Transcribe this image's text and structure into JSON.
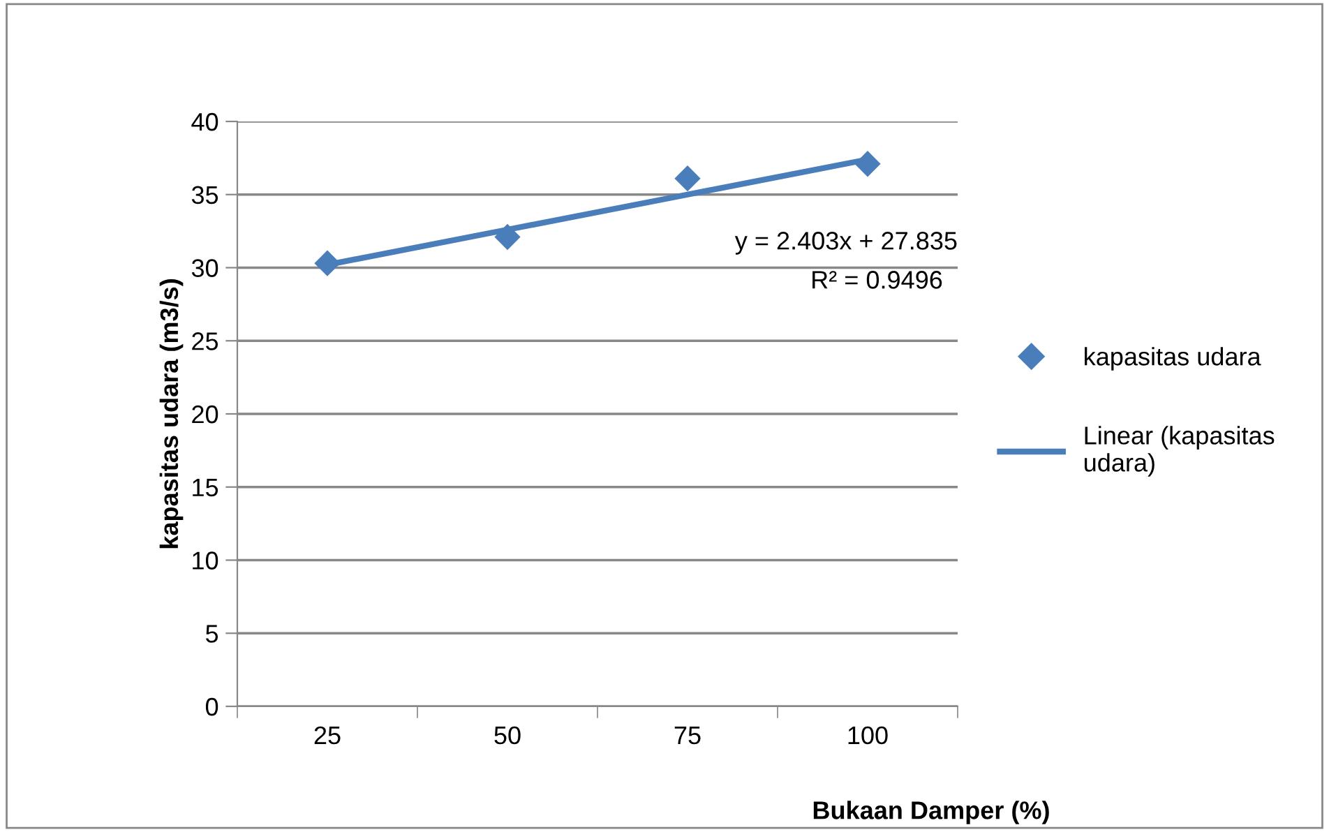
{
  "chart_data": {
    "type": "scatter",
    "xlabel": "Bukaan Damper (%)",
    "ylabel": "kapasitas udara (m3/s)",
    "categories": [
      "25",
      "50",
      "75",
      "100"
    ],
    "series": [
      {
        "name": "kapasitas udara",
        "color": "#4a7ebb",
        "marker": "diamond",
        "values": [
          30.3,
          32.1,
          36.1,
          37.1
        ]
      },
      {
        "name": "Linear (kapasitas udara)",
        "type": "line",
        "color": "#4a7ebb",
        "marker": "none",
        "line_style": "solid",
        "values": [
          30.2,
          32.6,
          35.0,
          37.4
        ]
      }
    ],
    "annotations": [
      "y = 2.403x + 27.835",
      "R² = 0.9496"
    ],
    "ylim": [
      0,
      40
    ],
    "yticks": [
      0,
      5,
      10,
      15,
      20,
      25,
      30,
      35,
      40
    ],
    "grid": "y",
    "legend": "right"
  }
}
